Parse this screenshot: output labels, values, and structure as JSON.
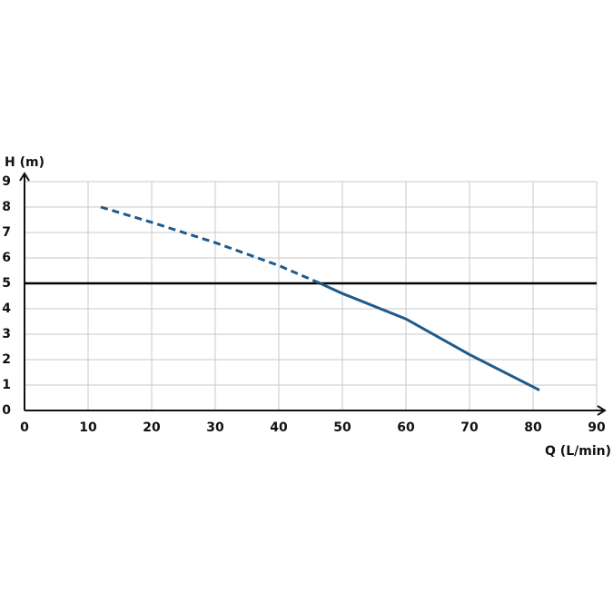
{
  "chart_data": {
    "type": "line",
    "y_label": "H (m)",
    "x_label": "Q (L/min)",
    "x": [
      12,
      20,
      30,
      40,
      46.5,
      50,
      60,
      70,
      81
    ],
    "series": [
      {
        "color": "#1f5a8a",
        "dashed": true,
        "values": [
          8,
          7.4,
          6.6,
          5.7,
          5,
          null,
          null,
          null,
          null
        ]
      },
      {
        "color": "#1f5a8a",
        "dashed": false,
        "values": [
          null,
          null,
          null,
          null,
          5,
          4.6,
          3.6,
          2.2,
          0.8
        ]
      }
    ],
    "hline": 5,
    "hline_color": "#000000",
    "xlim": [
      0,
      90
    ],
    "xticks": [
      0,
      10,
      20,
      30,
      40,
      50,
      60,
      70,
      80,
      90
    ],
    "ylim": [
      0,
      9
    ],
    "yticks": [
      0,
      1,
      2,
      3,
      4,
      5,
      6,
      7,
      8,
      9
    ],
    "grid": true
  }
}
